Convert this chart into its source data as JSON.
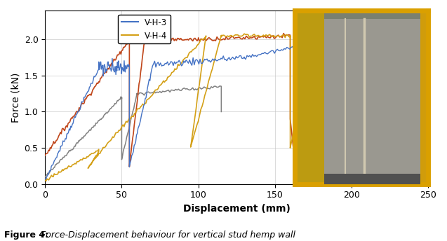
{
  "title": "",
  "xlabel": "Displacement (mm)",
  "ylabel": "Force (kN)",
  "xlim": [
    0,
    250
  ],
  "ylim": [
    0,
    2.4
  ],
  "yticks": [
    0,
    0.5,
    1,
    1.5,
    2
  ],
  "xticks": [
    0,
    50,
    100,
    150,
    200,
    250
  ],
  "legend_labels": [
    "V-H-3",
    "V-H-4"
  ],
  "colors": {
    "blue": "#4472C4",
    "orange": "#C0461A",
    "gray": "#808080",
    "yellow": "#D4A017"
  },
  "figure_caption_bold": "Figure 4:",
  "figure_caption_italic": " Force-Displacement behaviour for vertical stud hemp wall",
  "photo_x_start": 163,
  "photo_x_end": 250,
  "photo_y_start": 0,
  "photo_y_end": 2.35
}
